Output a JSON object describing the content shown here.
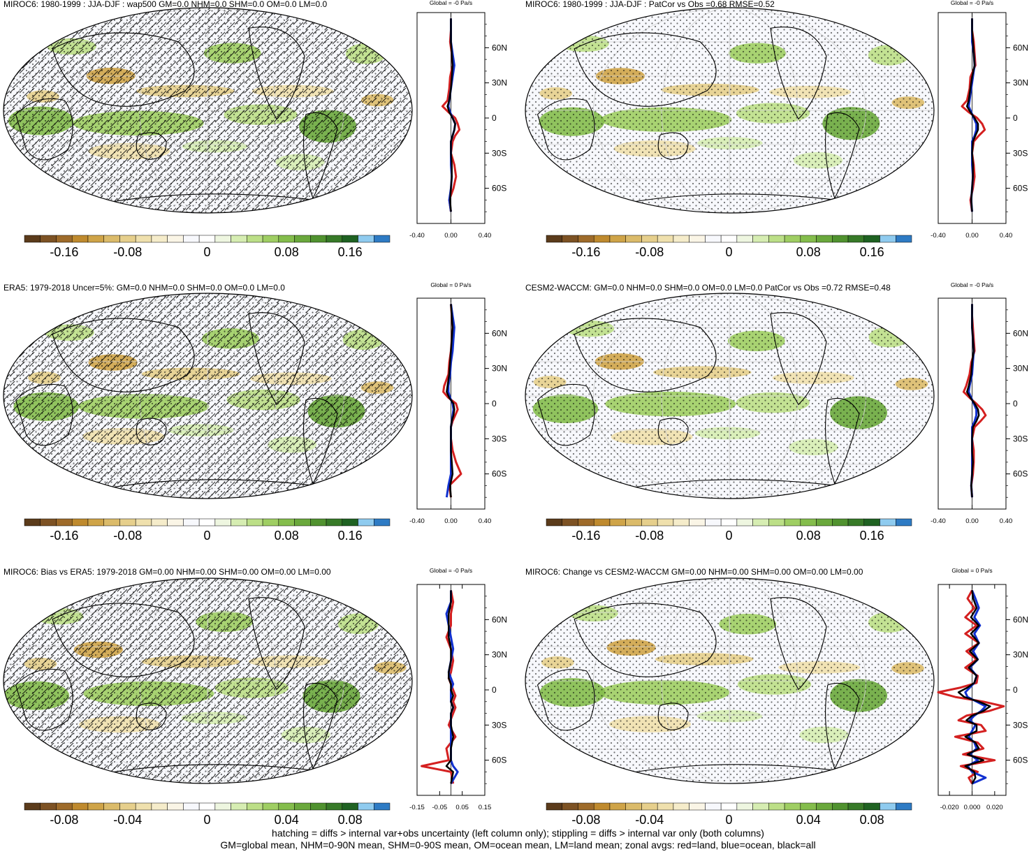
{
  "figure": {
    "footer_line1": "hatching = diffs > internal var+obs uncertainty (left column only); stippling = diffs > internal var only (both columns)",
    "footer_line2": "GM=global mean, NHM=0-90N mean, SHM=0-90S mean, OM=ocean mean, LM=land mean; zonal avgs: red=land, blue=ocean, black=all"
  },
  "colors": {
    "colorbar": [
      "#5b3b1b",
      "#7d5224",
      "#9e6b2a",
      "#bf8a2e",
      "#cfa448",
      "#dbbb6a",
      "#e6cf8c",
      "#efe0ad",
      "#f5ecca",
      "#faf5e6",
      "#f7f8fc",
      "#ffffff",
      "#eef6e0",
      "#d6edb2",
      "#bcdf87",
      "#9fce63",
      "#84bd4c",
      "#6aa83c",
      "#50922f",
      "#377a28",
      "#1f6222",
      "#8fcbef",
      "#2e7bc4"
    ],
    "land": "#d42020",
    "ocean": "#1030d0",
    "all": "#000000",
    "coast": "#000000"
  },
  "chart_data": [
    {
      "type": "heatmap",
      "title": "MIROC6: 1980-1999 : JJA-DJF : wap500 GM=0.0 NHM=0.0 SHM=0.0 OM=0.0 LM=0.0",
      "hatching": true,
      "stippling": true,
      "colorbar_ticks": [
        "-0.16",
        "-0.08",
        "0",
        "0.08",
        "0.16"
      ],
      "zonal": {
        "title": "Global = -0 Pa/s",
        "xlim": [
          -0.4,
          0.4
        ],
        "xticks": [
          "-0.40",
          "0.00",
          "0.40"
        ],
        "yticks": [
          "60N",
          "30N",
          "0",
          "30S",
          "60S"
        ],
        "lat": [
          85,
          75,
          65,
          55,
          45,
          35,
          25,
          15,
          10,
          5,
          0,
          -5,
          -10,
          -15,
          -20,
          -30,
          -40,
          -50,
          -60,
          -70,
          -80
        ],
        "land": [
          0.0,
          0.0,
          -0.01,
          0.01,
          0.02,
          -0.01,
          -0.02,
          -0.04,
          -0.1,
          -0.03,
          0.05,
          0.08,
          0.1,
          0.05,
          0.02,
          0.0,
          0.04,
          0.06,
          0.03,
          -0.02,
          0.0
        ],
        "ocean": [
          0.0,
          0.0,
          0.0,
          0.02,
          0.04,
          0.02,
          0.0,
          -0.02,
          -0.03,
          -0.01,
          0.02,
          0.05,
          0.04,
          0.02,
          0.0,
          0.0,
          0.0,
          0.01,
          0.0,
          -0.02,
          0.0
        ],
        "all": [
          0.0,
          0.0,
          0.0,
          0.01,
          0.02,
          0.01,
          0.0,
          -0.02,
          -0.04,
          -0.02,
          0.02,
          0.05,
          0.04,
          0.02,
          0.0,
          0.0,
          0.01,
          0.01,
          0.0,
          -0.01,
          0.0
        ]
      }
    },
    {
      "type": "heatmap",
      "title": "MIROC6: 1980-1999 : JJA-DJF : PatCor vs Obs =0.68 RMSE=0.52",
      "hatching": false,
      "stippling": true,
      "colorbar_ticks": [
        "-0.16",
        "-0.08",
        "0",
        "0.08",
        "0.16"
      ],
      "zonal": {
        "title": "Global = -0 Pa/s",
        "xlim": [
          -0.4,
          0.4
        ],
        "xticks": [
          "-0.40",
          "0.00",
          "0.40"
        ],
        "yticks": [
          "60N",
          "30N",
          "0",
          "30S",
          "60S"
        ],
        "lat": [
          85,
          75,
          65,
          55,
          45,
          35,
          25,
          15,
          10,
          5,
          0,
          -5,
          -10,
          -15,
          -20,
          -30,
          -40,
          -50,
          -60,
          -70,
          -80
        ],
        "land": [
          0.0,
          0.0,
          0.02,
          0.03,
          0.04,
          -0.02,
          -0.03,
          -0.06,
          -0.12,
          -0.04,
          0.06,
          0.12,
          0.15,
          0.08,
          0.02,
          0.0,
          0.02,
          0.03,
          0.01,
          -0.02,
          0.0
        ],
        "ocean": [
          0.0,
          0.0,
          0.0,
          0.02,
          0.03,
          0.01,
          -0.01,
          -0.03,
          -0.04,
          -0.01,
          0.02,
          0.05,
          0.05,
          0.03,
          0.0,
          0.0,
          0.0,
          0.01,
          0.0,
          -0.01,
          0.0
        ],
        "all": [
          0.0,
          0.0,
          0.01,
          0.02,
          0.03,
          0.0,
          -0.02,
          -0.04,
          -0.06,
          -0.02,
          0.03,
          0.07,
          0.07,
          0.04,
          0.01,
          0.0,
          0.01,
          0.01,
          0.0,
          -0.01,
          0.0
        ]
      }
    },
    {
      "type": "heatmap",
      "title": "ERA5: 1979-2018 Uncer=5%: GM=0.0 NHM=0.0 SHM=0.0 OM=0.0 LM=0.0",
      "hatching": true,
      "stippling": true,
      "colorbar_ticks": [
        "-0.16",
        "-0.08",
        "0",
        "0.08",
        "0.16"
      ],
      "zonal": {
        "title": "Global = 0 Pa/s",
        "xlim": [
          -0.4,
          0.4
        ],
        "xticks": [
          "-0.40",
          "0.00",
          "0.40"
        ],
        "yticks": [
          "60N",
          "30N",
          "0",
          "30S",
          "60S"
        ],
        "lat": [
          85,
          75,
          65,
          55,
          45,
          35,
          25,
          15,
          10,
          5,
          0,
          -5,
          -10,
          -15,
          -20,
          -30,
          -40,
          -50,
          -60,
          -70,
          -80
        ],
        "land": [
          0.0,
          0.01,
          0.02,
          0.01,
          0.0,
          -0.02,
          -0.03,
          -0.08,
          -0.09,
          -0.03,
          0.06,
          0.08,
          0.05,
          0.02,
          0.0,
          0.0,
          0.02,
          0.06,
          0.12,
          -0.02,
          0.0
        ],
        "ocean": [
          0.0,
          0.02,
          0.04,
          0.03,
          0.02,
          0.0,
          -0.01,
          -0.03,
          -0.03,
          -0.01,
          0.02,
          0.03,
          0.02,
          0.01,
          0.0,
          0.0,
          0.0,
          0.0,
          0.0,
          -0.03,
          -0.05
        ],
        "all": [
          0.0,
          0.01,
          0.02,
          0.01,
          0.0,
          -0.01,
          -0.02,
          -0.04,
          -0.05,
          -0.02,
          0.03,
          0.04,
          0.03,
          0.01,
          0.0,
          0.0,
          0.0,
          0.01,
          0.02,
          -0.01,
          0.0
        ]
      }
    },
    {
      "type": "heatmap",
      "title": "CESM2-WACCM: GM=0.0 NHM=0.0 SHM=0.0 OM=0.0 LM=0.0 PatCor vs Obs =0.72 RMSE=0.48",
      "hatching": false,
      "stippling": true,
      "colorbar_ticks": [
        "-0.16",
        "-0.08",
        "0",
        "0.08",
        "0.16"
      ],
      "zonal": {
        "title": "Global = -0 Pa/s",
        "xlim": [
          -0.4,
          0.4
        ],
        "xticks": [
          "-0.40",
          "0.00",
          "0.40"
        ],
        "yticks": [
          "60N",
          "30N",
          "0",
          "30S",
          "60S"
        ],
        "lat": [
          85,
          75,
          65,
          55,
          45,
          35,
          25,
          15,
          10,
          5,
          0,
          -5,
          -10,
          -15,
          -20,
          -30,
          -40,
          -50,
          -60,
          -70,
          -80
        ],
        "land": [
          0.0,
          0.0,
          0.01,
          0.02,
          0.03,
          -0.01,
          -0.03,
          -0.07,
          -0.1,
          -0.03,
          0.05,
          0.12,
          0.16,
          0.1,
          0.03,
          0.0,
          0.02,
          0.02,
          0.01,
          -0.01,
          0.0
        ],
        "ocean": [
          0.0,
          0.0,
          0.0,
          0.01,
          0.02,
          0.01,
          0.0,
          -0.03,
          -0.04,
          -0.01,
          0.02,
          0.05,
          0.05,
          0.03,
          0.0,
          0.0,
          0.0,
          0.0,
          0.0,
          -0.01,
          0.0
        ],
        "all": [
          0.0,
          0.0,
          0.0,
          0.01,
          0.02,
          0.0,
          -0.01,
          -0.04,
          -0.06,
          -0.02,
          0.03,
          0.07,
          0.08,
          0.05,
          0.01,
          0.0,
          0.0,
          0.01,
          0.0,
          -0.01,
          0.0
        ]
      }
    },
    {
      "type": "heatmap",
      "title": "MIROC6: Bias vs ERA5: 1979-2018 GM=0.00 NHM=0.00 SHM=0.00 OM=0.00 LM=0.00",
      "hatching": true,
      "stippling": true,
      "colorbar_ticks": [
        "-0.08",
        "-0.04",
        "0",
        "0.04",
        "0.08"
      ],
      "zonal": {
        "title": "Global = -0 Pa/s",
        "xlim": [
          -0.15,
          0.15
        ],
        "xticks": [
          "-0.15",
          "-0.05",
          "0.05",
          "0.15"
        ],
        "yticks": [
          "60N",
          "30N",
          "0",
          "30S",
          "60S"
        ],
        "lat": [
          85,
          75,
          65,
          55,
          45,
          35,
          25,
          15,
          10,
          5,
          0,
          -5,
          -10,
          -15,
          -20,
          -30,
          -40,
          -50,
          -60,
          -65,
          -70,
          -80
        ],
        "land": [
          0.0,
          0.01,
          0.0,
          0.0,
          -0.02,
          0.0,
          0.01,
          0.0,
          -0.01,
          0.0,
          0.01,
          0.02,
          0.01,
          0.02,
          0.01,
          -0.01,
          0.02,
          -0.02,
          -0.01,
          -0.13,
          0.0,
          0.01
        ],
        "ocean": [
          0.0,
          0.0,
          -0.02,
          -0.01,
          0.0,
          0.01,
          0.0,
          -0.01,
          0.0,
          0.01,
          0.0,
          0.0,
          0.0,
          0.01,
          0.0,
          0.0,
          0.0,
          0.0,
          0.0,
          0.01,
          0.03,
          0.0
        ],
        "all": [
          0.0,
          0.0,
          -0.01,
          -0.01,
          -0.01,
          0.0,
          0.0,
          -0.01,
          -0.01,
          0.0,
          0.0,
          0.01,
          0.0,
          0.01,
          0.0,
          0.0,
          0.01,
          0.0,
          0.0,
          -0.02,
          0.01,
          0.0
        ]
      }
    },
    {
      "type": "heatmap",
      "title": "MIROC6: Change vs CESM2-WACCM GM=0.00 NHM=0.00 SHM=0.00 OM=0.00 LM=0.00",
      "hatching": false,
      "stippling": true,
      "colorbar_ticks": [
        "-0.08",
        "-0.04",
        "0",
        "0.04",
        "0.08"
      ],
      "zonal": {
        "title": "Global = 0 Pa/s",
        "xlim": [
          -0.03,
          0.03
        ],
        "xticks": [
          "-0.020",
          "0.000",
          "0.020"
        ],
        "yticks": [
          "60N",
          "30N",
          "0",
          "30S",
          "60S"
        ],
        "lat": [
          85,
          78,
          70,
          62,
          55,
          48,
          40,
          33,
          26,
          19,
          12,
          6,
          2,
          -2,
          -6,
          -10,
          -14,
          -18,
          -22,
          -26,
          -30,
          -35,
          -40,
          -45,
          -50,
          -55,
          -60,
          -65,
          -70,
          -75,
          -80
        ],
        "land": [
          0.0,
          -0.004,
          0.002,
          -0.006,
          0.004,
          -0.006,
          0.006,
          -0.005,
          0.004,
          -0.006,
          0.005,
          0.004,
          -0.01,
          -0.03,
          -0.015,
          0.01,
          0.028,
          0.015,
          -0.005,
          -0.012,
          0.008,
          0.012,
          -0.015,
          0.005,
          0.01,
          -0.008,
          0.02,
          -0.01,
          0.005,
          -0.003,
          0.0
        ],
        "ocean": [
          0.0,
          0.003,
          0.006,
          0.002,
          0.007,
          0.002,
          0.006,
          0.001,
          0.005,
          -0.002,
          0.004,
          0.002,
          -0.002,
          -0.006,
          -0.004,
          0.004,
          0.012,
          0.008,
          0.002,
          -0.002,
          0.003,
          0.0,
          -0.003,
          0.002,
          0.004,
          -0.002,
          0.005,
          -0.004,
          0.0,
          0.012,
          0.0
        ],
        "all": [
          0.0,
          0.001,
          0.004,
          -0.001,
          0.006,
          -0.001,
          0.006,
          -0.002,
          0.005,
          -0.003,
          0.004,
          0.002,
          -0.004,
          -0.012,
          -0.007,
          0.006,
          0.016,
          0.01,
          0.0,
          -0.005,
          0.004,
          0.004,
          -0.006,
          0.003,
          0.006,
          -0.004,
          0.01,
          -0.006,
          0.002,
          0.003,
          0.0
        ]
      }
    }
  ]
}
